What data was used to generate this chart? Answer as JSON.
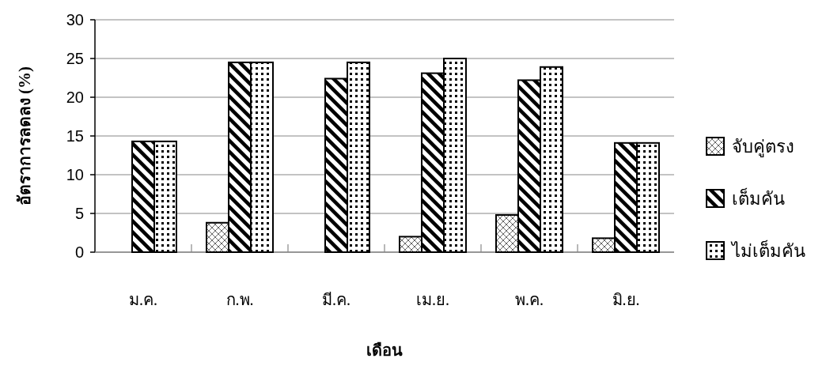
{
  "chart_data": {
    "type": "bar",
    "xlabel": "เดือน",
    "ylabel": "อัตราการลดลง (%)",
    "categories": [
      "ม.ค.",
      "ก.พ.",
      "มี.ค.",
      "เม.ย.",
      "พ.ค.",
      "มิ.ย."
    ],
    "series": [
      {
        "name": "จับคู่ตรง",
        "color": "#000000",
        "values": [
          null,
          3.8,
          null,
          2.0,
          4.8,
          1.8
        ]
      },
      {
        "name": "เต็มคัน",
        "color": "#000000",
        "values": [
          14.3,
          24.5,
          22.4,
          23.1,
          22.2,
          14.1
        ]
      },
      {
        "name": "ไม่เต็มคัน",
        "color": "#000000",
        "values": [
          14.3,
          24.5,
          24.5,
          25.0,
          23.9,
          14.1
        ]
      }
    ],
    "ylim": [
      0,
      30
    ],
    "yticks": [
      0,
      5,
      10,
      15,
      20,
      25,
      30
    ],
    "grid": "y",
    "legend": "right"
  }
}
